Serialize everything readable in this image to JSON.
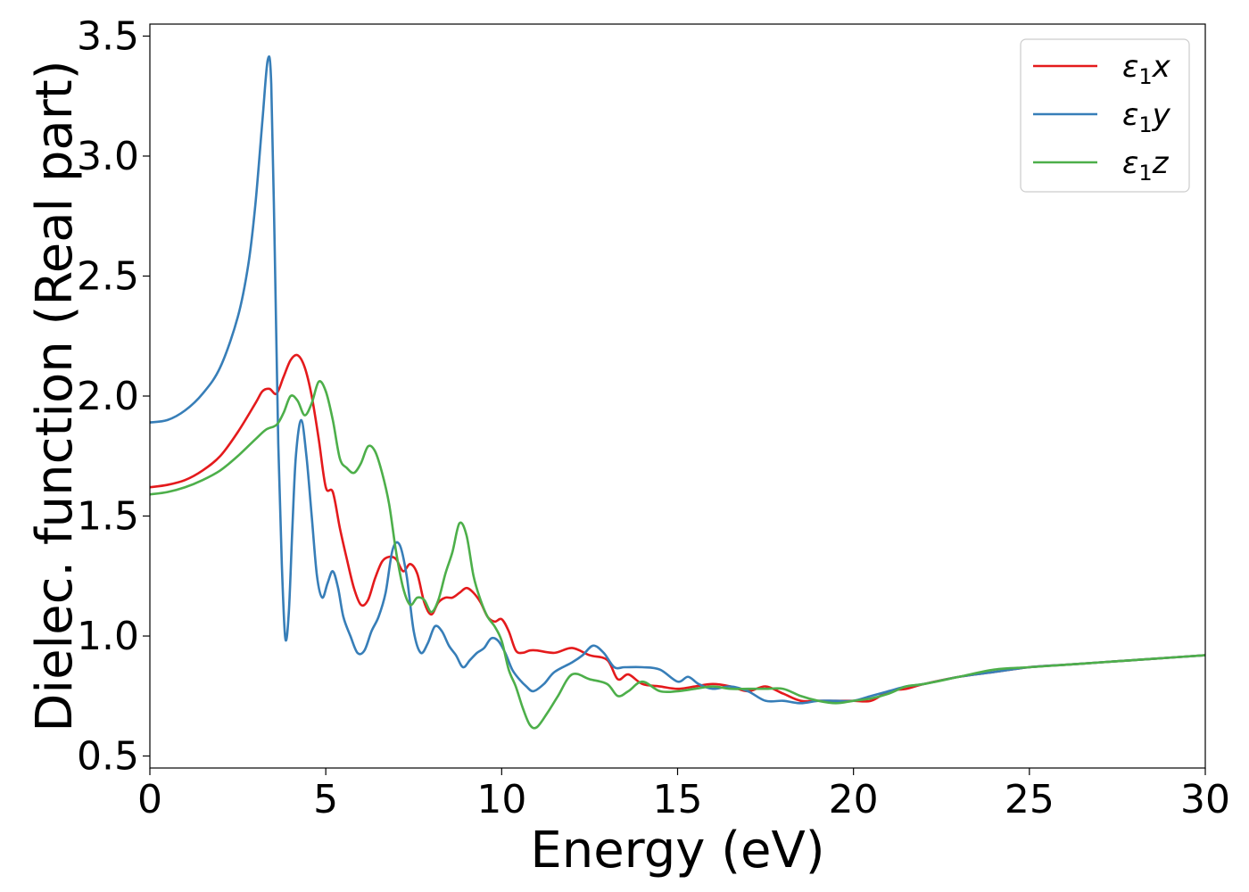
{
  "chart_data": {
    "type": "line",
    "xlabel": "Energy (eV)",
    "ylabel": "Dielec. function (Real part)",
    "xlim": [
      0,
      30
    ],
    "ylim": [
      0.45,
      3.55
    ],
    "xticks": [
      0,
      5,
      10,
      15,
      20,
      25,
      30
    ],
    "xtick_labels": [
      "0",
      "5",
      "10",
      "15",
      "20",
      "25",
      "30"
    ],
    "yticks": [
      0.5,
      1.0,
      1.5,
      2.0,
      2.5,
      3.0,
      3.5
    ],
    "ytick_labels": [
      "0.5",
      "1.0",
      "1.5",
      "2.0",
      "2.5",
      "3.0",
      "3.5"
    ],
    "grid": false,
    "legend_position": "top-right",
    "series": [
      {
        "name": "ε₁x",
        "legend_symbol": "ε",
        "legend_sub": "1",
        "legend_var": "x",
        "color": "#e41a1c",
        "x": [
          0,
          0.5,
          1,
          1.5,
          2,
          2.5,
          3,
          3.2,
          3.4,
          3.6,
          3.8,
          4.0,
          4.2,
          4.4,
          4.6,
          4.8,
          5.0,
          5.2,
          5.4,
          5.6,
          5.8,
          6.0,
          6.2,
          6.4,
          6.6,
          6.8,
          7.0,
          7.2,
          7.4,
          7.6,
          7.8,
          8.0,
          8.2,
          8.4,
          8.6,
          8.8,
          9.0,
          9.2,
          9.4,
          9.6,
          9.8,
          10.0,
          10.2,
          10.4,
          10.6,
          10.8,
          11.0,
          11.5,
          12.0,
          12.5,
          13.0,
          13.3,
          13.6,
          14.0,
          14.5,
          15.0,
          15.5,
          16.0,
          16.5,
          17.0,
          17.5,
          18.0,
          18.5,
          19.0,
          19.5,
          20.0,
          20.5,
          21.0,
          21.5,
          22.0,
          23.0,
          24.0,
          25.0,
          26.0,
          27.0,
          28.0,
          29.0,
          30.0
        ],
        "values": [
          1.62,
          1.63,
          1.65,
          1.69,
          1.75,
          1.85,
          1.97,
          2.02,
          2.03,
          2.01,
          2.08,
          2.15,
          2.17,
          2.12,
          2.0,
          1.82,
          1.62,
          1.6,
          1.45,
          1.32,
          1.2,
          1.13,
          1.15,
          1.24,
          1.31,
          1.33,
          1.32,
          1.27,
          1.3,
          1.26,
          1.14,
          1.09,
          1.14,
          1.16,
          1.16,
          1.18,
          1.2,
          1.18,
          1.14,
          1.08,
          1.06,
          1.07,
          1.02,
          0.94,
          0.93,
          0.94,
          0.94,
          0.93,
          0.95,
          0.92,
          0.9,
          0.82,
          0.84,
          0.8,
          0.79,
          0.78,
          0.79,
          0.8,
          0.79,
          0.77,
          0.79,
          0.76,
          0.73,
          0.73,
          0.73,
          0.73,
          0.73,
          0.77,
          0.78,
          0.8,
          0.83,
          0.85,
          0.87,
          0.88,
          0.89,
          0.9,
          0.91,
          0.92
        ]
      },
      {
        "name": "ε₁y",
        "legend_symbol": "ε",
        "legend_sub": "1",
        "legend_var": "y",
        "color": "#377eb8",
        "x": [
          0,
          0.5,
          1,
          1.5,
          2,
          2.5,
          2.8,
          3.0,
          3.2,
          3.35,
          3.45,
          3.55,
          3.65,
          3.75,
          3.85,
          3.95,
          4.05,
          4.15,
          4.3,
          4.45,
          4.6,
          4.75,
          4.9,
          5.05,
          5.2,
          5.35,
          5.5,
          5.7,
          5.9,
          6.1,
          6.3,
          6.5,
          6.7,
          6.9,
          7.1,
          7.3,
          7.5,
          7.7,
          7.9,
          8.1,
          8.3,
          8.5,
          8.7,
          8.9,
          9.1,
          9.3,
          9.5,
          9.7,
          9.9,
          10.1,
          10.3,
          10.5,
          10.7,
          10.9,
          11.2,
          11.5,
          12.0,
          12.3,
          12.6,
          12.9,
          13.2,
          13.5,
          14.0,
          14.5,
          15.0,
          15.3,
          15.6,
          16.0,
          16.5,
          17.0,
          17.5,
          18.0,
          18.5,
          19.0,
          19.5,
          20.0,
          20.5,
          21.0,
          21.5,
          22.0,
          23.0,
          24.0,
          25.0,
          26.0,
          27.0,
          28.0,
          29.0,
          30.0
        ],
        "values": [
          1.89,
          1.9,
          1.94,
          2.01,
          2.12,
          2.33,
          2.55,
          2.8,
          3.15,
          3.4,
          3.3,
          2.6,
          1.8,
          1.3,
          0.99,
          1.1,
          1.45,
          1.75,
          1.9,
          1.75,
          1.5,
          1.25,
          1.16,
          1.22,
          1.27,
          1.2,
          1.08,
          1.0,
          0.93,
          0.94,
          1.02,
          1.08,
          1.18,
          1.36,
          1.38,
          1.25,
          1.02,
          0.93,
          0.97,
          1.04,
          1.02,
          0.96,
          0.92,
          0.87,
          0.9,
          0.93,
          0.95,
          0.99,
          0.98,
          0.93,
          0.86,
          0.82,
          0.79,
          0.77,
          0.8,
          0.85,
          0.89,
          0.92,
          0.96,
          0.93,
          0.87,
          0.87,
          0.87,
          0.86,
          0.81,
          0.83,
          0.8,
          0.78,
          0.79,
          0.77,
          0.73,
          0.73,
          0.72,
          0.73,
          0.73,
          0.73,
          0.75,
          0.77,
          0.79,
          0.8,
          0.83,
          0.85,
          0.87,
          0.88,
          0.89,
          0.9,
          0.91,
          0.92
        ]
      },
      {
        "name": "ε₁z",
        "legend_symbol": "ε",
        "legend_sub": "1",
        "legend_var": "z",
        "color": "#4daf4a",
        "x": [
          0,
          0.5,
          1,
          1.5,
          2,
          2.5,
          3,
          3.3,
          3.6,
          3.8,
          4.0,
          4.2,
          4.4,
          4.6,
          4.8,
          5.0,
          5.2,
          5.4,
          5.6,
          5.8,
          6.0,
          6.2,
          6.4,
          6.6,
          6.8,
          7.0,
          7.2,
          7.4,
          7.6,
          7.8,
          8.0,
          8.2,
          8.4,
          8.6,
          8.8,
          9.0,
          9.2,
          9.4,
          9.6,
          9.8,
          10.0,
          10.2,
          10.4,
          10.6,
          10.8,
          11.0,
          11.3,
          11.6,
          12.0,
          12.5,
          13.0,
          13.3,
          13.6,
          14.0,
          14.5,
          15.0,
          15.5,
          16.0,
          16.5,
          17.0,
          17.5,
          18.0,
          18.5,
          19.0,
          19.5,
          20.0,
          20.5,
          21.0,
          21.5,
          22.0,
          23.0,
          24.0,
          25.0,
          26.0,
          27.0,
          28.0,
          29.0,
          30.0
        ],
        "values": [
          1.59,
          1.6,
          1.62,
          1.65,
          1.69,
          1.75,
          1.82,
          1.86,
          1.88,
          1.93,
          2.0,
          1.98,
          1.92,
          1.97,
          2.06,
          2.02,
          1.9,
          1.74,
          1.7,
          1.68,
          1.72,
          1.79,
          1.77,
          1.68,
          1.55,
          1.35,
          1.2,
          1.13,
          1.16,
          1.15,
          1.1,
          1.15,
          1.26,
          1.35,
          1.47,
          1.42,
          1.25,
          1.15,
          1.08,
          1.04,
          0.98,
          0.86,
          0.79,
          0.7,
          0.63,
          0.62,
          0.68,
          0.75,
          0.84,
          0.82,
          0.8,
          0.75,
          0.77,
          0.81,
          0.77,
          0.77,
          0.78,
          0.79,
          0.78,
          0.78,
          0.78,
          0.78,
          0.75,
          0.73,
          0.72,
          0.73,
          0.74,
          0.76,
          0.79,
          0.8,
          0.83,
          0.86,
          0.87,
          0.88,
          0.89,
          0.9,
          0.91,
          0.92
        ]
      }
    ]
  }
}
